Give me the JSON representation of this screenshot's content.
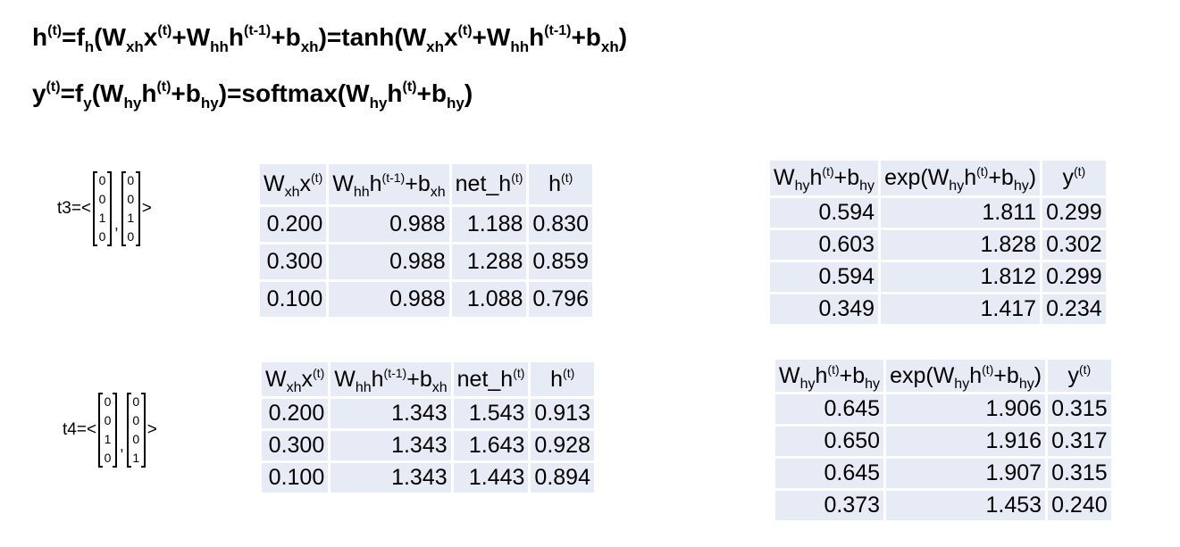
{
  "equations": {
    "eq1": {
      "h": "h",
      "t": "(t)",
      "eq": "=",
      "f": "f",
      "h_sub": "h",
      "lp": "(",
      "W": "W",
      "xh": "xh",
      "x": "x",
      "plus": "+",
      "hh": "hh",
      "tm1": "(t-1)",
      "b": "b",
      "rp": ")",
      "tanh": "tanh("
    },
    "eq2": {
      "y": "y",
      "t": "(t)",
      "eq": "=",
      "f": "f",
      "y_sub": "y",
      "lp": "(",
      "W": "W",
      "hy": "hy",
      "h": "h",
      "plus": "+",
      "b": "b",
      "rp": ")",
      "softmax": "softmax("
    }
  },
  "headers": {
    "wx_main": "W",
    "wx_sub": "xh",
    "wx_x": "x",
    "wx_sup": "(t)",
    "wh_main": "W",
    "wh_sub": "hh",
    "wh_h": "h",
    "wh_sup": "(t-1)",
    "wh_plus": "+b",
    "wh_bsub": "xh",
    "net": "net_h",
    "net_sup": "(t)",
    "h": "h",
    "h_sup": "(t)",
    "why_main": "W",
    "why_sub": "hy",
    "why_h": "h",
    "why_sup": "(t)",
    "why_plus": "+b",
    "why_bsub": "hy",
    "exp_pre": "exp(W",
    "exp_sub": "hy",
    "exp_h": "h",
    "exp_sup": "(t)",
    "exp_plus": "+b",
    "exp_bsub": "hy",
    "exp_close": ")",
    "y": "y",
    "y_sup": "(t)"
  },
  "t3": {
    "label": "t3=<",
    "comma": ",",
    "close": ">",
    "x_vec": [
      "0",
      "0",
      "1",
      "0"
    ],
    "y_vec": [
      "0",
      "0",
      "1",
      "0"
    ],
    "hidden_rows": [
      [
        "0.200",
        "0.988",
        "1.188",
        "0.830"
      ],
      [
        "0.300",
        "0.988",
        "1.288",
        "0.859"
      ],
      [
        "0.100",
        "0.988",
        "1.088",
        "0.796"
      ]
    ],
    "output_rows": [
      [
        "0.594",
        "1.811",
        "0.299"
      ],
      [
        "0.603",
        "1.828",
        "0.302"
      ],
      [
        "0.594",
        "1.812",
        "0.299"
      ],
      [
        "0.349",
        "1.417",
        "0.234"
      ]
    ]
  },
  "t4": {
    "label": "t4=<",
    "comma": ",",
    "close": ">",
    "x_vec": [
      "0",
      "0",
      "1",
      "0"
    ],
    "y_vec": [
      "0",
      "0",
      "0",
      "1"
    ],
    "hidden_rows": [
      [
        "0.200",
        "1.343",
        "1.543",
        "0.913"
      ],
      [
        "0.300",
        "1.343",
        "1.643",
        "0.928"
      ],
      [
        "0.100",
        "1.343",
        "1.443",
        "0.894"
      ]
    ],
    "output_rows": [
      [
        "0.645",
        "1.906",
        "0.315"
      ],
      [
        "0.650",
        "1.916",
        "0.317"
      ],
      [
        "0.645",
        "1.907",
        "0.315"
      ],
      [
        "0.373",
        "1.453",
        "0.240"
      ]
    ]
  },
  "colors": {
    "cell_bg": "#e7ebf6",
    "text": "#000000"
  }
}
